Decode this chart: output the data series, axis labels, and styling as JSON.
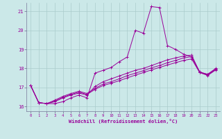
{
  "xlabel": "Windchill (Refroidissement éolien,°C)",
  "background_color": "#cbe8e8",
  "grid_color": "#aacccc",
  "line_color": "#990099",
  "xlim": [
    -0.5,
    23.5
  ],
  "ylim": [
    15.75,
    21.45
  ],
  "xticks": [
    0,
    1,
    2,
    3,
    4,
    5,
    6,
    7,
    8,
    9,
    10,
    11,
    12,
    13,
    14,
    15,
    16,
    17,
    18,
    19,
    20,
    21,
    22,
    23
  ],
  "yticks": [
    16,
    17,
    18,
    19,
    20,
    21
  ],
  "series": [
    [
      17.1,
      16.2,
      16.15,
      16.15,
      16.25,
      16.45,
      16.6,
      16.45,
      17.75,
      17.9,
      18.05,
      18.35,
      18.6,
      20.0,
      19.85,
      21.25,
      21.2,
      19.2,
      19.0,
      18.75,
      18.6,
      17.8,
      17.7,
      18.0
    ],
    [
      17.1,
      16.2,
      16.15,
      16.25,
      16.45,
      16.6,
      16.7,
      16.6,
      17.05,
      17.3,
      17.45,
      17.6,
      17.75,
      17.9,
      18.0,
      18.15,
      18.3,
      18.45,
      18.55,
      18.65,
      18.7,
      17.8,
      17.65,
      17.95
    ],
    [
      17.1,
      16.2,
      16.15,
      16.28,
      16.48,
      16.63,
      16.75,
      16.63,
      16.9,
      17.1,
      17.22,
      17.35,
      17.5,
      17.65,
      17.78,
      17.92,
      18.05,
      18.18,
      18.3,
      18.42,
      18.5,
      17.78,
      17.63,
      17.92
    ],
    [
      17.1,
      16.2,
      16.15,
      16.33,
      16.53,
      16.68,
      16.8,
      16.68,
      16.95,
      17.18,
      17.3,
      17.45,
      17.62,
      17.75,
      17.88,
      18.03,
      18.15,
      18.3,
      18.42,
      18.55,
      18.62,
      17.82,
      17.67,
      17.97
    ]
  ]
}
